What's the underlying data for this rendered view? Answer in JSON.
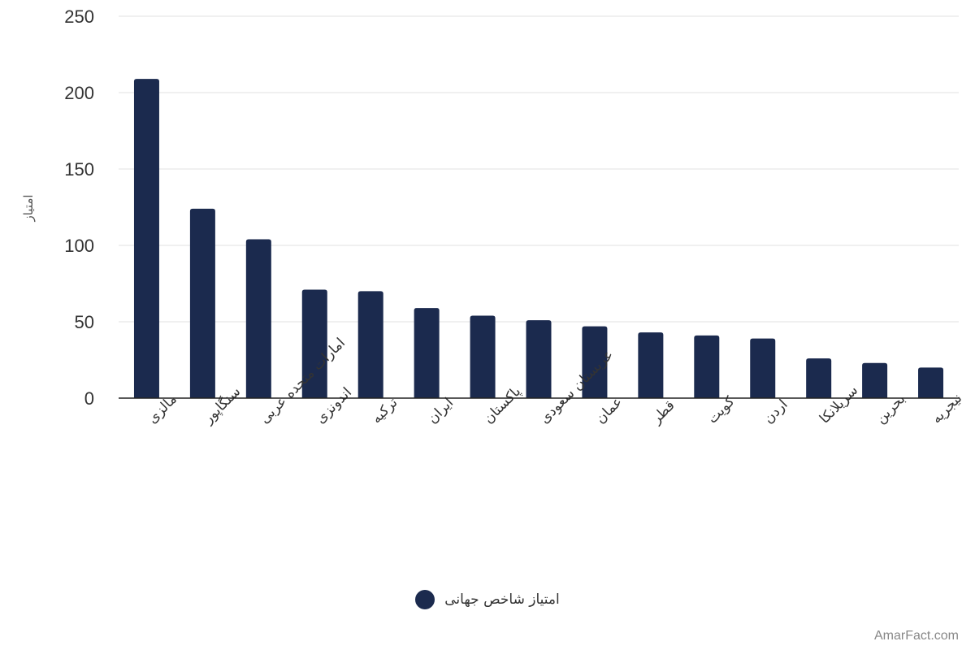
{
  "colors": {
    "bar": "#1b2a4e",
    "grid": "#e2e2e2",
    "axis": "#222222"
  },
  "chart_data": {
    "type": "bar",
    "ylabel": "امتیاز",
    "ylim": [
      0,
      250
    ],
    "yticks": [
      0,
      50,
      100,
      150,
      200,
      250
    ],
    "grid": true,
    "legend_position": "bottom",
    "categories": [
      "مالزی",
      "سنگاپور",
      "امارات متحده عربی",
      "اندونزی",
      "ترکیه",
      "ایران",
      "پاکستان",
      "عربستان سعودی",
      "عمان",
      "قطر",
      "کویت",
      "اردن",
      "سریلانکا",
      "بحرین",
      "نیجریه"
    ],
    "series": [
      {
        "name": "امتیاز شاخص جهانی",
        "values": [
          209,
          124,
          104,
          71,
          70,
          59,
          54,
          51,
          47,
          43,
          41,
          39,
          26,
          23,
          20
        ]
      }
    ]
  },
  "watermark": "AmarFact.com"
}
